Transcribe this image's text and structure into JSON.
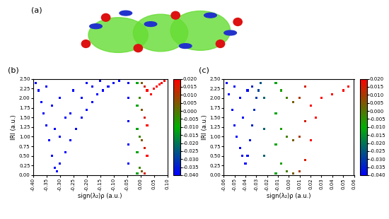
{
  "panel_a": {
    "label": "(a)"
  },
  "chart_data": [
    {
      "type": "scatter",
      "panel_label": "(b)",
      "xlabel": "sign(λ₂)ρ (a.u.)",
      "ylabel": "IRI (a.u.)",
      "xlim": [
        -0.4,
        0.1
      ],
      "xticks": [
        {
          "value": -0.4,
          "label": "-0.40"
        },
        {
          "value": -0.35,
          "label": "-0.35"
        },
        {
          "value": -0.3,
          "label": "-0.30"
        },
        {
          "value": -0.25,
          "label": "-0.25"
        },
        {
          "value": -0.2,
          "label": "-0.20"
        },
        {
          "value": -0.15,
          "label": "-0.15"
        },
        {
          "value": -0.1,
          "label": "-0.10"
        },
        {
          "value": -0.05,
          "label": "-0.05"
        },
        {
          "value": 0.0,
          "label": "0.00"
        },
        {
          "value": 0.05,
          "label": "0.05"
        },
        {
          "value": 0.1,
          "label": "0.10"
        }
      ],
      "ylim": [
        0.0,
        2.5
      ],
      "yticks": [
        {
          "value": 0.0,
          "label": "0.00"
        },
        {
          "value": 0.25,
          "label": "0.25"
        },
        {
          "value": 0.5,
          "label": "0.50"
        },
        {
          "value": 0.75,
          "label": "0.75"
        },
        {
          "value": 1.0,
          "label": "1.00"
        },
        {
          "value": 1.25,
          "label": "1.25"
        },
        {
          "value": 1.5,
          "label": "1.50"
        },
        {
          "value": 1.75,
          "label": "1.75"
        },
        {
          "value": 2.0,
          "label": "2.00"
        },
        {
          "value": 2.25,
          "label": "2.25"
        },
        {
          "value": 2.5,
          "label": "2.50"
        }
      ],
      "x": [
        -0.39,
        -0.38,
        -0.37,
        -0.36,
        -0.35,
        -0.34,
        -0.33,
        -0.32,
        -0.31,
        -0.3,
        -0.28,
        -0.26,
        -0.24,
        -0.22,
        -0.2,
        -0.18,
        -0.16,
        -0.14,
        -0.12,
        -0.1,
        -0.08,
        -0.35,
        -0.33,
        -0.32,
        -0.3,
        -0.28,
        -0.25,
        -0.22,
        -0.2,
        -0.18,
        -0.15,
        -0.3,
        -0.26,
        -0.045,
        -0.045,
        -0.045,
        -0.045,
        -0.045,
        -0.012,
        -0.012,
        -0.012,
        -0.012,
        -0.012,
        -0.003,
        -0.003,
        -0.003,
        0.005,
        0.005,
        0.005,
        0.005,
        0.015,
        0.015,
        0.015,
        0.015,
        0.025,
        0.025,
        0.025,
        0.04,
        0.05,
        0.06,
        0.07,
        0.08,
        0.09
      ],
      "y": [
        2.4,
        2.2,
        1.9,
        1.6,
        1.3,
        0.9,
        0.5,
        0.2,
        0.1,
        0.3,
        0.6,
        0.9,
        1.2,
        1.5,
        1.7,
        1.9,
        2.1,
        2.2,
        2.3,
        2.4,
        2.45,
        2.3,
        1.8,
        1.2,
        2.0,
        1.5,
        2.2,
        2.0,
        2.4,
        2.3,
        2.45,
        1.0,
        1.6,
        0.3,
        0.8,
        1.4,
        2.0,
        2.4,
        0.05,
        0.6,
        1.2,
        1.8,
        2.4,
        0.2,
        1.0,
        2.0,
        0.1,
        0.9,
        1.7,
        2.4,
        0.05,
        0.7,
        1.5,
        2.3,
        0.5,
        1.3,
        2.2,
        2.1,
        2.25,
        2.3,
        2.35,
        2.4,
        2.45
      ],
      "colorbar": {
        "range": [
          -0.04,
          0.02
        ],
        "ticks": [
          {
            "value": -0.04,
            "label": "-0.040"
          },
          {
            "value": -0.035,
            "label": "-0.035"
          },
          {
            "value": -0.03,
            "label": "-0.030"
          },
          {
            "value": -0.025,
            "label": "-0.025"
          },
          {
            "value": -0.02,
            "label": "-0.020"
          },
          {
            "value": -0.015,
            "label": "-0.015"
          },
          {
            "value": -0.01,
            "label": "-0.010"
          },
          {
            "value": -0.005,
            "label": "-0.005"
          },
          {
            "value": 0.0,
            "label": "0.000"
          },
          {
            "value": 0.005,
            "label": "0.005"
          },
          {
            "value": 0.01,
            "label": "0.010"
          },
          {
            "value": 0.015,
            "label": "0.015"
          },
          {
            "value": 0.02,
            "label": "0.020"
          }
        ]
      }
    },
    {
      "type": "scatter",
      "panel_label": "(c)",
      "xlabel": "sign(λ₂)ρ (a.u.)",
      "ylabel": "IRI (a.u.)",
      "xlim": [
        -0.06,
        0.06
      ],
      "xticks": [
        {
          "value": -0.06,
          "label": "-0.06"
        },
        {
          "value": -0.05,
          "label": "-0.05"
        },
        {
          "value": -0.04,
          "label": "-0.04"
        },
        {
          "value": -0.03,
          "label": "-0.03"
        },
        {
          "value": -0.02,
          "label": "-0.02"
        },
        {
          "value": -0.01,
          "label": "-0.01"
        },
        {
          "value": 0.0,
          "label": "0.00"
        },
        {
          "value": 0.01,
          "label": "0.01"
        },
        {
          "value": 0.02,
          "label": "0.02"
        },
        {
          "value": 0.03,
          "label": "0.03"
        },
        {
          "value": 0.04,
          "label": "0.04"
        },
        {
          "value": 0.05,
          "label": "0.05"
        },
        {
          "value": 0.06,
          "label": "0.06"
        }
      ],
      "ylim": [
        0.0,
        2.5
      ],
      "yticks": [
        {
          "value": 0.0,
          "label": "0.00"
        },
        {
          "value": 0.25,
          "label": "0.25"
        },
        {
          "value": 0.5,
          "label": "0.50"
        },
        {
          "value": 0.75,
          "label": "0.75"
        },
        {
          "value": 1.0,
          "label": "1.00"
        },
        {
          "value": 1.25,
          "label": "1.25"
        },
        {
          "value": 1.5,
          "label": "1.50"
        },
        {
          "value": 1.75,
          "label": "1.75"
        },
        {
          "value": 2.0,
          "label": "2.00"
        },
        {
          "value": 2.25,
          "label": "2.25"
        },
        {
          "value": 2.5,
          "label": "2.50"
        }
      ],
      "x": [
        -0.057,
        -0.055,
        -0.052,
        -0.05,
        -0.048,
        -0.045,
        -0.043,
        -0.04,
        -0.038,
        -0.036,
        -0.034,
        -0.032,
        -0.03,
        -0.028,
        -0.026,
        -0.05,
        -0.045,
        -0.042,
        -0.038,
        -0.034,
        -0.023,
        -0.023,
        -0.023,
        -0.012,
        -0.012,
        -0.012,
        -0.012,
        -0.007,
        -0.007,
        -0.007,
        -0.002,
        -0.002,
        -0.002,
        0.004,
        0.004,
        0.004,
        0.01,
        0.01,
        0.01,
        0.015,
        0.015,
        0.015,
        0.02,
        0.02,
        0.025,
        0.03,
        0.04,
        0.05,
        0.055
      ],
      "y": [
        2.4,
        2.1,
        1.7,
        1.3,
        1.0,
        0.7,
        0.5,
        0.3,
        0.5,
        0.9,
        1.3,
        1.7,
        2.0,
        2.2,
        2.4,
        2.3,
        2.0,
        1.5,
        2.2,
        2.3,
        0.5,
        1.2,
        2.0,
        0.05,
        0.8,
        1.6,
        2.4,
        0.3,
        1.2,
        2.2,
        0.1,
        1.0,
        2.0,
        0.05,
        0.9,
        1.9,
        0.1,
        1.0,
        2.0,
        0.4,
        1.4,
        2.3,
        0.9,
        1.8,
        1.5,
        2.0,
        2.1,
        2.2,
        2.3
      ],
      "colorbar": {
        "range": [
          -0.04,
          0.02
        ],
        "ticks": [
          {
            "value": -0.04,
            "label": "-0.040"
          },
          {
            "value": -0.035,
            "label": "-0.035"
          },
          {
            "value": -0.03,
            "label": "-0.030"
          },
          {
            "value": -0.025,
            "label": "-0.025"
          },
          {
            "value": -0.02,
            "label": "-0.020"
          },
          {
            "value": -0.015,
            "label": "-0.015"
          },
          {
            "value": -0.01,
            "label": "-0.010"
          },
          {
            "value": -0.005,
            "label": "-0.005"
          },
          {
            "value": 0.0,
            "label": "0.000"
          },
          {
            "value": 0.005,
            "label": "0.005"
          },
          {
            "value": 0.01,
            "label": "0.010"
          },
          {
            "value": 0.015,
            "label": "0.015"
          },
          {
            "value": 0.02,
            "label": "0.020"
          }
        ]
      }
    }
  ]
}
